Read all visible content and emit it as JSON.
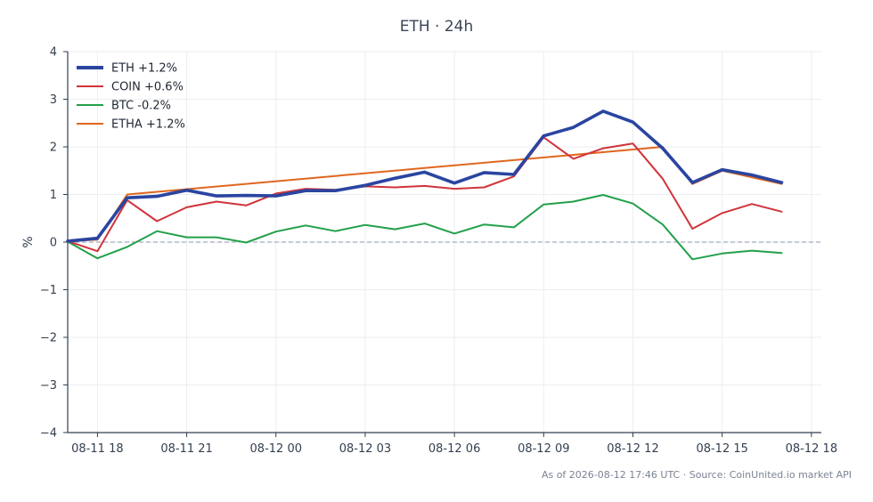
{
  "chart_data": {
    "type": "line",
    "title": "ETH · 24h",
    "ylabel": "%",
    "xlabel": "",
    "ylim": [
      -4,
      4
    ],
    "yticks": [
      "4",
      "3",
      "2",
      "1",
      "0",
      "−1",
      "−2",
      "−3",
      "−4"
    ],
    "ytick_values": [
      4,
      3,
      2,
      1,
      0,
      -1,
      -2,
      -3,
      -4
    ],
    "xlim": [
      "08-11 17:00",
      "08-12 18:20"
    ],
    "xticks": [
      "08-11 18",
      "08-11 21",
      "08-12 00",
      "08-12 03",
      "08-12 06",
      "08-12 09",
      "08-12 12",
      "08-12 15",
      "08-12 18"
    ],
    "xtick_times": [
      "08-11 18:00",
      "08-11 21:00",
      "08-12 00:00",
      "08-12 03:00",
      "08-12 06:00",
      "08-12 09:00",
      "08-12 12:00",
      "08-12 15:00",
      "08-12 18:00"
    ],
    "grid": true,
    "zero_line": true,
    "legend_position": "top-left",
    "series": [
      {
        "name": "ETH +1.2%",
        "color": "#2a45a0",
        "x": [
          "08-11 17:00",
          "08-11 18:00",
          "08-11 19:00",
          "08-11 20:00",
          "08-11 21:00",
          "08-11 22:00",
          "08-11 23:00",
          "08-12 00:00",
          "08-12 01:00",
          "08-12 02:00",
          "08-12 03:00",
          "08-12 04:00",
          "08-12 05:00",
          "08-12 06:00",
          "08-12 07:00",
          "08-12 08:00",
          "08-12 09:00",
          "08-12 10:00",
          "08-12 11:00",
          "08-12 12:00",
          "08-12 13:00",
          "08-12 14:00",
          "08-12 15:00",
          "08-12 16:00",
          "08-12 17:00"
        ],
        "values": [
          0.02,
          0.08,
          0.93,
          0.96,
          1.09,
          0.97,
          0.98,
          0.97,
          1.08,
          1.08,
          1.19,
          1.34,
          1.47,
          1.24,
          1.46,
          1.42,
          2.23,
          2.41,
          2.75,
          2.52,
          1.97,
          1.25,
          1.52,
          1.41,
          1.25
        ]
      },
      {
        "name": "COIN +0.6%",
        "color": "#d0343a",
        "x": [
          "08-11 17:00",
          "08-11 18:00",
          "08-11 19:00",
          "08-11 20:00",
          "08-11 21:00",
          "08-11 22:00",
          "08-11 23:00",
          "08-12 00:00",
          "08-12 01:00",
          "08-12 02:00",
          "08-12 03:00",
          "08-12 04:00",
          "08-12 05:00",
          "08-12 06:00",
          "08-12 07:00",
          "08-12 08:00",
          "08-12 09:00",
          "08-12 10:00",
          "08-12 11:00",
          "08-12 12:00",
          "08-12 13:00",
          "08-12 14:00",
          "08-12 15:00",
          "08-12 16:00",
          "08-12 17:00"
        ],
        "values": [
          0.02,
          -0.19,
          0.88,
          0.44,
          0.73,
          0.85,
          0.77,
          1.02,
          1.12,
          1.1,
          1.17,
          1.15,
          1.18,
          1.12,
          1.15,
          1.38,
          2.2,
          1.75,
          1.97,
          2.07,
          1.33,
          0.28,
          0.61,
          0.8,
          0.64
        ]
      },
      {
        "name": "BTC -0.2%",
        "color": "#22a04a",
        "x": [
          "08-11 17:00",
          "08-11 18:00",
          "08-11 19:00",
          "08-11 20:00",
          "08-11 21:00",
          "08-11 22:00",
          "08-11 23:00",
          "08-12 00:00",
          "08-12 01:00",
          "08-12 02:00",
          "08-12 03:00",
          "08-12 04:00",
          "08-12 05:00",
          "08-12 06:00",
          "08-12 07:00",
          "08-12 08:00",
          "08-12 09:00",
          "08-12 10:00",
          "08-12 11:00",
          "08-12 12:00",
          "08-12 13:00",
          "08-12 14:00",
          "08-12 15:00",
          "08-12 16:00",
          "08-12 17:00"
        ],
        "values": [
          0.01,
          -0.34,
          -0.1,
          0.23,
          0.1,
          0.1,
          -0.01,
          0.22,
          0.35,
          0.23,
          0.36,
          0.27,
          0.39,
          0.18,
          0.37,
          0.31,
          0.79,
          0.85,
          0.99,
          0.81,
          0.37,
          -0.36,
          -0.24,
          -0.18,
          -0.23
        ]
      },
      {
        "name": "ETHA +1.2%",
        "color": "#e0661e",
        "x": [
          "08-11 17:00",
          "08-11 18:00",
          "08-11 19:00",
          "08-12 13:00",
          "08-12 14:00",
          "08-12 15:00",
          "08-12 17:00"
        ],
        "values": [
          0.02,
          0.05,
          1.0,
          2.0,
          1.22,
          1.5,
          1.22
        ]
      }
    ]
  },
  "footnote": "As of 2026-08-12 17:46 UTC · Source: CoinUnited.io market API"
}
